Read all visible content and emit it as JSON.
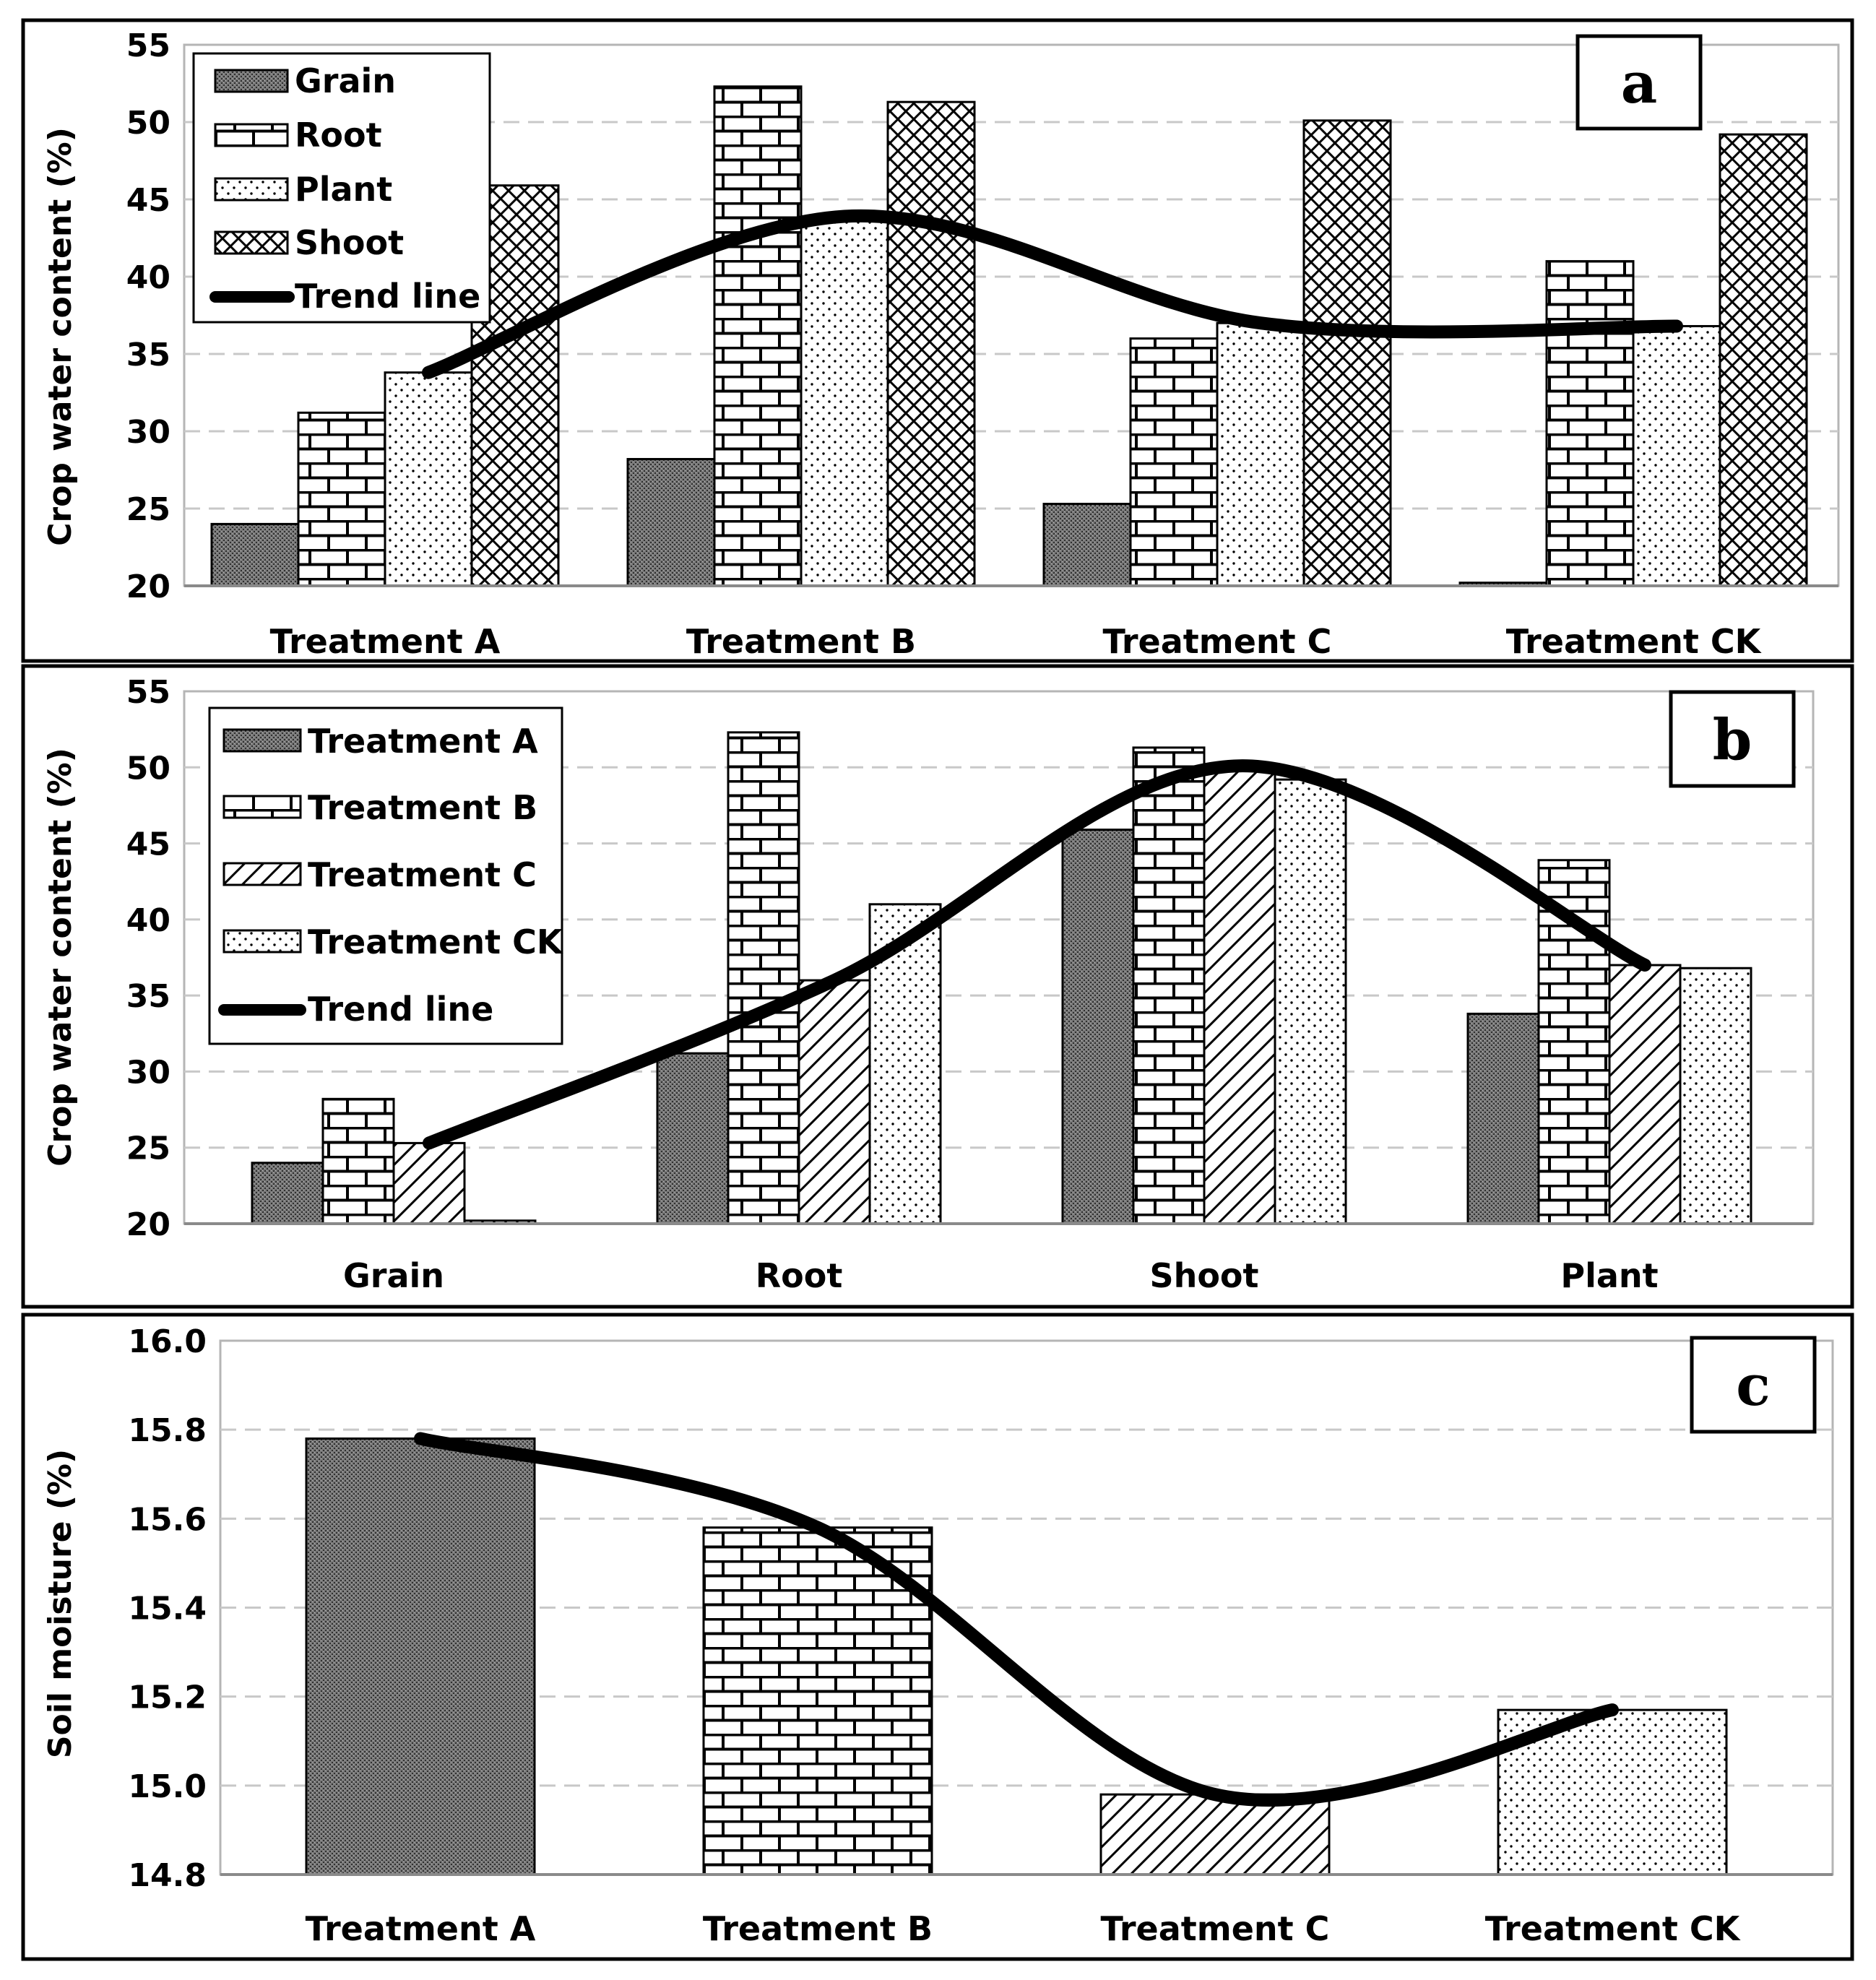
{
  "colors": {
    "background": "#ffffff",
    "ink": "#000000",
    "grid": "#c8c8c8",
    "trend": "#000000"
  },
  "chart_data": [
    {
      "panel": "a",
      "type": "bar",
      "categories": [
        "Treatment A",
        "Treatment B",
        "Treatment C",
        "Treatment CK"
      ],
      "series": [
        {
          "name": "Grain",
          "pattern": "grain",
          "values": [
            24.0,
            28.2,
            25.3,
            20.2
          ]
        },
        {
          "name": "Root",
          "pattern": "brick",
          "values": [
            31.2,
            52.3,
            36.0,
            41.0
          ]
        },
        {
          "name": "Plant",
          "pattern": "dots",
          "values": [
            33.8,
            43.9,
            37.0,
            36.8
          ]
        },
        {
          "name": "Shoot",
          "pattern": "cross",
          "values": [
            45.9,
            51.3,
            50.1,
            49.2
          ]
        }
      ],
      "trend": {
        "name": "Trend line",
        "anchor_series": "Plant",
        "values": [
          33.8,
          43.9,
          37.0,
          36.8
        ]
      },
      "legend": [
        "Grain",
        "Root",
        "Plant",
        "Shoot",
        "Trend line"
      ],
      "legend_position": "top-left",
      "ylabel": "Crop water content (%)",
      "xlabel": "",
      "ylim": [
        20,
        55
      ],
      "yticks": [
        "20",
        "25",
        "30",
        "35",
        "40",
        "45",
        "50",
        "55"
      ],
      "grid": true,
      "panel_label": "a"
    },
    {
      "panel": "b",
      "type": "bar",
      "categories": [
        "Grain",
        "Root",
        "Shoot",
        "Plant"
      ],
      "series": [
        {
          "name": "Treatment A",
          "pattern": "grain",
          "values": [
            24.0,
            31.2,
            45.9,
            33.8
          ]
        },
        {
          "name": "Treatment B",
          "pattern": "brick",
          "values": [
            28.2,
            52.3,
            51.3,
            43.9
          ]
        },
        {
          "name": "Treatment C",
          "pattern": "diag",
          "values": [
            25.3,
            36.0,
            50.1,
            37.0
          ]
        },
        {
          "name": "Treatment CK",
          "pattern": "dots",
          "values": [
            20.2,
            41.0,
            49.2,
            36.8
          ]
        }
      ],
      "trend": {
        "name": "Trend line",
        "anchor_series": "Treatment C",
        "values": [
          25.3,
          36.0,
          50.1,
          37.0
        ]
      },
      "legend": [
        "Treatment A",
        "Treatment B",
        "Treatment C",
        "Treatment CK",
        "Trend line"
      ],
      "legend_position": "top-left",
      "ylabel": "Crop water content (%)",
      "xlabel": "",
      "ylim": [
        20,
        55
      ],
      "yticks": [
        "20",
        "25",
        "30",
        "35",
        "40",
        "45",
        "50",
        "55"
      ],
      "grid": true,
      "panel_label": "b"
    },
    {
      "panel": "c",
      "type": "bar",
      "categories": [
        "Treatment A",
        "Treatment B",
        "Treatment C",
        "Treatment CK"
      ],
      "series": [
        {
          "name": "Soil moisture",
          "patterns": [
            "grain",
            "brick",
            "diag",
            "dots"
          ],
          "values": [
            15.78,
            15.58,
            14.98,
            15.17
          ]
        }
      ],
      "trend": {
        "name": "Trend line",
        "values": [
          15.78,
          15.58,
          14.98,
          15.17
        ]
      },
      "legend": [],
      "ylabel": "Soil moisture (%)",
      "xlabel": "",
      "ylim": [
        14.8,
        16.0
      ],
      "yticks": [
        "14.8",
        "15.0",
        "15.2",
        "15.4",
        "15.6",
        "15.8",
        "16.0"
      ],
      "grid": true,
      "panel_label": "c"
    }
  ]
}
